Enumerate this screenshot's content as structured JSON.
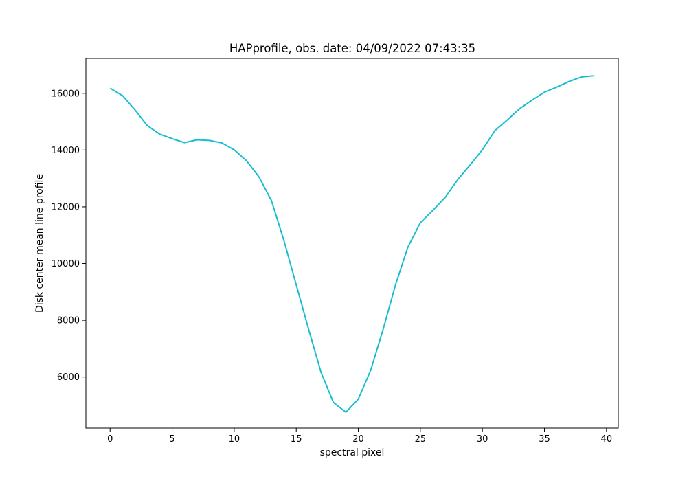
{
  "chart_data": {
    "type": "line",
    "title": "HAPprofile, obs. date: 04/09/2022 07:43:35",
    "xlabel": "spectral pixel",
    "ylabel": "Disk center mean line profile",
    "xlim": [
      -1.95,
      40.95
    ],
    "ylim": [
      4200,
      17230
    ],
    "xticks": [
      0,
      5,
      10,
      15,
      20,
      25,
      30,
      35,
      40
    ],
    "yticks": [
      6000,
      8000,
      10000,
      12000,
      14000,
      16000
    ],
    "grid": false,
    "series": [
      {
        "color": "#17becf",
        "x": [
          0,
          1,
          2,
          3,
          4,
          5,
          6,
          7,
          8,
          9,
          10,
          11,
          12,
          13,
          14,
          15,
          16,
          17,
          18,
          19,
          20,
          21,
          22,
          23,
          24,
          25,
          26,
          27,
          28,
          29,
          30,
          31,
          32,
          33,
          34,
          35,
          36,
          37,
          38,
          39
        ],
        "y": [
          16180,
          15920,
          15420,
          14860,
          14560,
          14400,
          14260,
          14360,
          14340,
          14250,
          14010,
          13620,
          13050,
          12220,
          10820,
          9250,
          7680,
          6160,
          5100,
          4760,
          5220,
          6240,
          7680,
          9250,
          10580,
          11440,
          11870,
          12330,
          12950,
          13470,
          14010,
          14680,
          15060,
          15460,
          15760,
          16040,
          16220,
          16420,
          16580,
          16620
        ]
      }
    ]
  }
}
